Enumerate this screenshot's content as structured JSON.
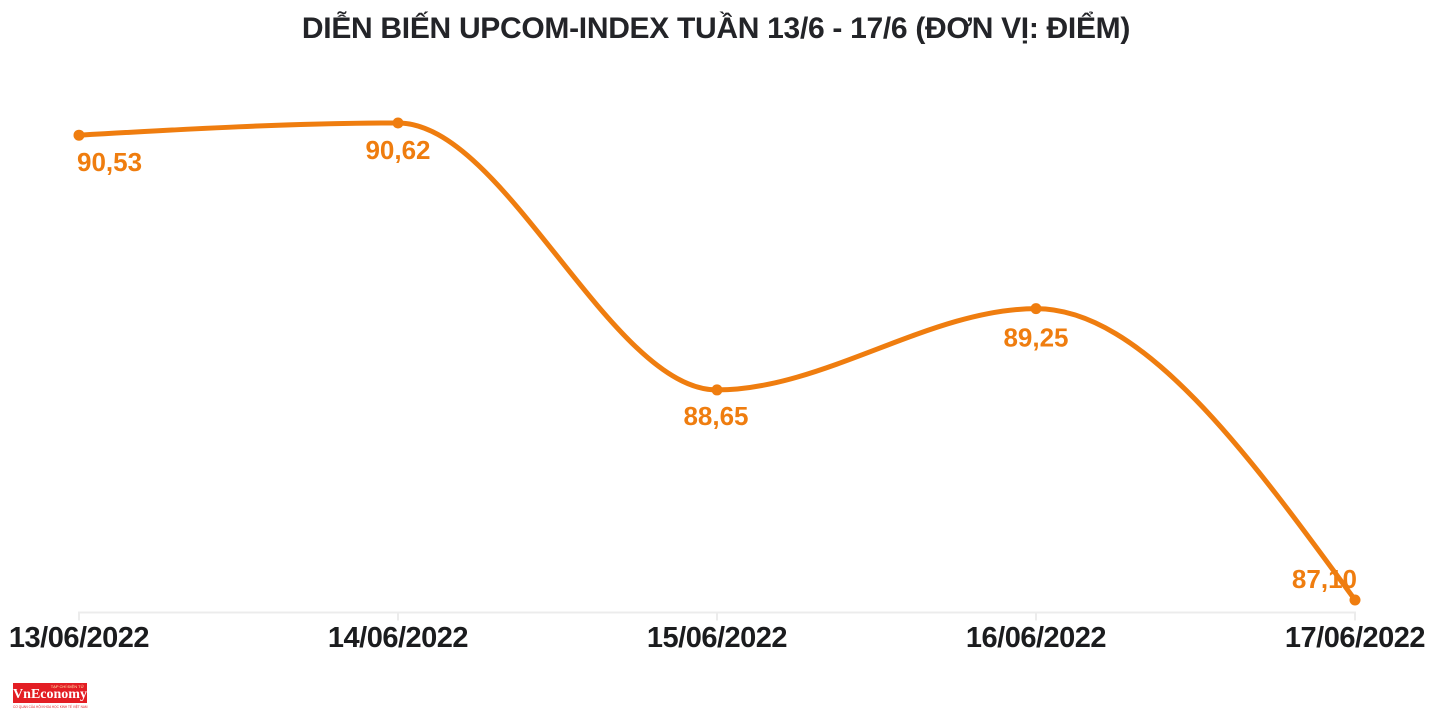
{
  "chart_data": {
    "type": "line",
    "title": "DIỄN BIẾN UPCOM-INDEX TUẦN 13/6 - 17/6 (ĐƠN VỊ: ĐIỂM)",
    "series_name": "UPCOM-INDEX",
    "categories": [
      "13/06/2022",
      "14/06/2022",
      "15/06/2022",
      "16/06/2022",
      "17/06/2022"
    ],
    "values": [
      90.53,
      90.62,
      88.65,
      89.25,
      87.1
    ],
    "point_labels": [
      "90,53",
      "90,62",
      "88,65",
      "89,25",
      "87,10"
    ],
    "unit": "ĐIỂM",
    "line_color": "#EF7D0F",
    "point_label_color": "#EF7D0F",
    "axis_color": "#ECECEC",
    "axis_text_color": "#1b1c1e",
    "title_color": "#232428",
    "grid": false,
    "legend": false,
    "y_axis_visible": false
  },
  "logo": {
    "publisher": "VnEconomy",
    "tagline_top": "TẠP CHÍ ĐIỆN TỬ",
    "tagline_bottom": "CƠ QUAN CỦA HỘI KHOA HỌC KINH TẾ VIỆT NAM",
    "box_color": "#E31E24",
    "tagline_color": "#E31E24"
  }
}
